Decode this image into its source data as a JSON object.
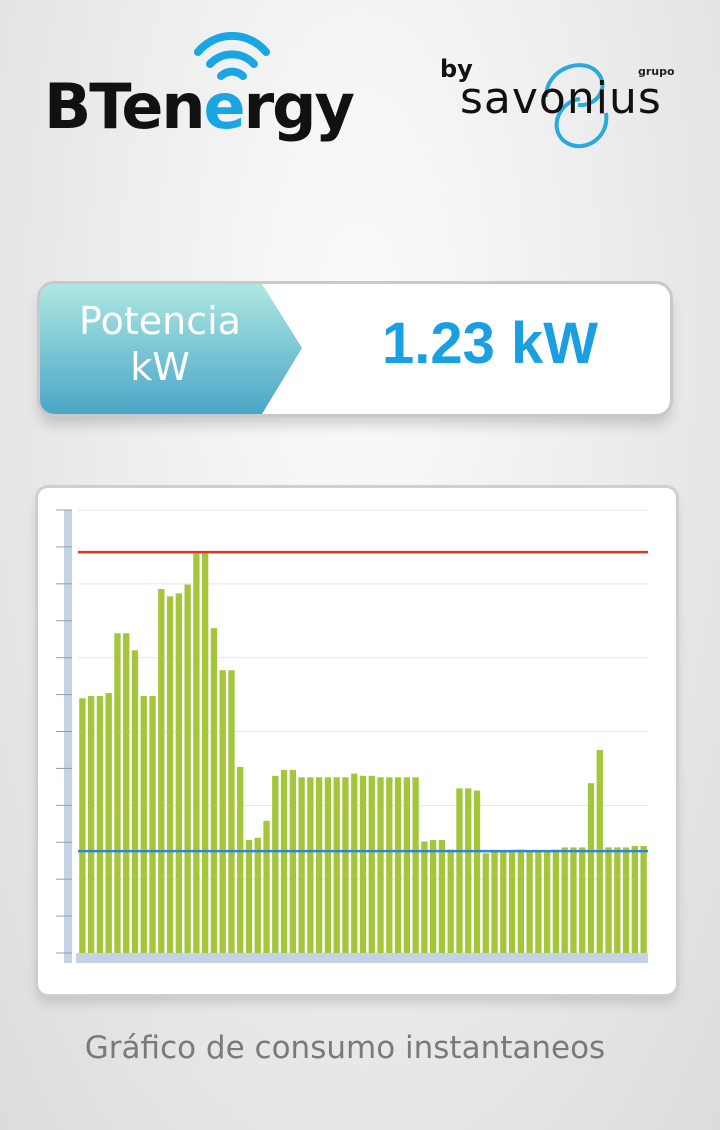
{
  "header": {
    "logo_prefix": "BTen",
    "logo_e": "e",
    "logo_suffix": "rgy",
    "partner_by": "by",
    "partner_group": "grupo",
    "partner_name": "savonius"
  },
  "power": {
    "label_line1": "Potencia",
    "label_line2": "kW",
    "value": "1.23 kW"
  },
  "chart_data": {
    "type": "bar",
    "ylim": [
      0,
      12
    ],
    "grid": true,
    "values": [
      6.9,
      6.96,
      6.96,
      7.04,
      8.66,
      8.66,
      8.2,
      6.96,
      6.96,
      9.86,
      9.66,
      9.74,
      9.98,
      10.86,
      10.86,
      8.8,
      7.66,
      7.66,
      5.04,
      3.06,
      3.12,
      3.58,
      4.8,
      4.96,
      4.96,
      4.76,
      4.76,
      4.76,
      4.76,
      4.76,
      4.76,
      4.86,
      4.8,
      4.8,
      4.76,
      4.76,
      4.76,
      4.76,
      4.76,
      3.02,
      3.06,
      3.06,
      2.8,
      4.46,
      4.46,
      4.4,
      2.7,
      2.76,
      2.76,
      2.76,
      2.8,
      2.76,
      2.76,
      2.76,
      2.8,
      2.86,
      2.86,
      2.86,
      4.6,
      5.5,
      2.86,
      2.86,
      2.86,
      2.9,
      2.9
    ],
    "reference_lines": [
      {
        "color": "#e53222",
        "value": 10.86
      },
      {
        "color": "#2f86d6",
        "value": 2.76
      }
    ],
    "bar_color": "#a3c63b",
    "axis_color": "#c3d3e4"
  },
  "caption": "Gráfico de consumo instantaneos",
  "colors": {
    "accent": "#1a9fe0",
    "tag_top": "#a8e4e0",
    "tag_bottom": "#4aa9c8"
  },
  "icons": {
    "logo_signal": "wifi-icon",
    "partner_swirl": "swirl-icon"
  }
}
